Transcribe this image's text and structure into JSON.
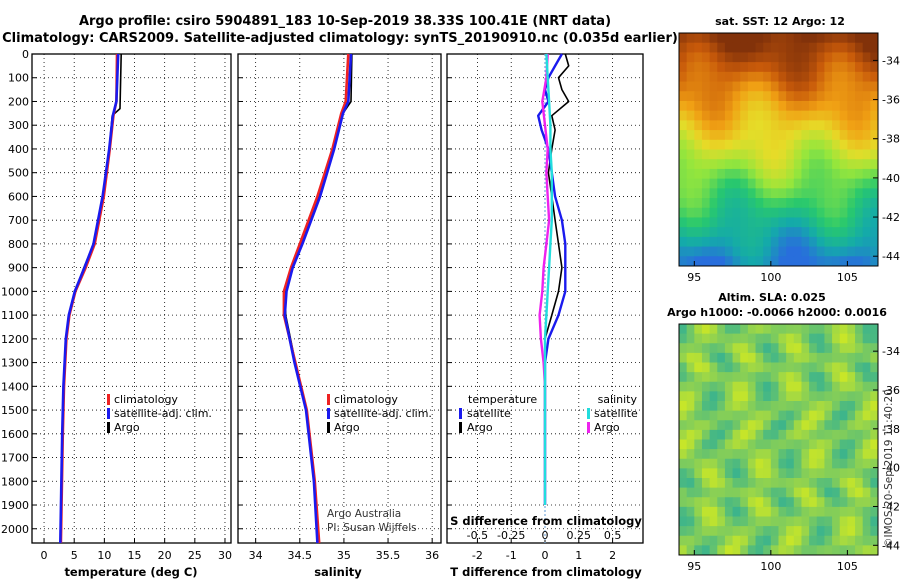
{
  "title_line1": "Argo profile: csiro 5904891_183 10-Sep-2019 38.33S 100.41E (NRT data)",
  "title_line2": "Climatology: CARS2009. Satellite-adjusted climatology: synTS_20190910.nc (0.035d earlier)",
  "credit_line1": "Argo Australia",
  "credit_line2": "PI: Susan Wijffels",
  "stamp": "©IMOS 20-Sep-2019 11:40:20",
  "colors": {
    "climatology": "#ee2222",
    "satellite": "#1a1aee",
    "argo": "#000000",
    "sal_satellite": "#22dddd",
    "sal_argo": "#ee22ee"
  },
  "chart_data": [
    {
      "type": "line",
      "id": "temperature",
      "xlabel": "temperature (deg C)",
      "ylabel": "",
      "xlim": [
        -2,
        31
      ],
      "ylim": [
        2060,
        0
      ],
      "xticks": [
        "0",
        "5",
        "10",
        "15",
        "20",
        "25",
        "30"
      ],
      "yticks": [
        "0",
        "100",
        "200",
        "300",
        "400",
        "500",
        "600",
        "700",
        "800",
        "900",
        "1000",
        "1100",
        "1200",
        "1300",
        "1400",
        "1500",
        "1600",
        "1700",
        "1800",
        "1900",
        "2000"
      ],
      "legend": [
        "climatology",
        "satellite-adj. clim.",
        "Argo"
      ],
      "series": [
        {
          "name": "climatology",
          "depth": [
            0,
            200,
            260,
            400,
            600,
            800,
            900,
            1000,
            1100,
            1200,
            1400,
            1600,
            2060
          ],
          "values": [
            12.1,
            12.0,
            11.5,
            10.9,
            9.9,
            8.4,
            6.9,
            5.2,
            4.2,
            3.7,
            3.3,
            3.1,
            2.8
          ]
        },
        {
          "name": "satellite-adj. clim.",
          "depth": [
            0,
            200,
            260,
            400,
            600,
            800,
            900,
            1000,
            1100,
            1200,
            1400,
            1600,
            2060
          ],
          "values": [
            12.3,
            12.0,
            11.4,
            10.8,
            9.7,
            8.2,
            6.7,
            5.1,
            4.1,
            3.6,
            3.2,
            3.0,
            2.7
          ]
        },
        {
          "name": "Argo",
          "depth": [
            0,
            230,
            260,
            400,
            600,
            800,
            900,
            1000,
            1100,
            1200,
            1400,
            1600,
            1900
          ],
          "values": [
            12.8,
            12.6,
            11.3,
            10.8,
            9.7,
            8.2,
            6.6,
            5.1,
            4.1,
            3.6,
            3.2,
            3.0,
            2.8
          ]
        }
      ]
    },
    {
      "type": "line",
      "id": "salinity",
      "xlabel": "salinity",
      "ylabel": "",
      "xlim": [
        33.8,
        36.1
      ],
      "ylim": [
        2060,
        0
      ],
      "xticks": [
        "34",
        "34.5",
        "35",
        "35.5",
        "36"
      ],
      "legend": [
        "climatology",
        "satellite-adj. clim.",
        "Argo"
      ],
      "series": [
        {
          "name": "climatology",
          "depth": [
            0,
            200,
            250,
            400,
            600,
            800,
            900,
            1000,
            1100,
            1300,
            1500,
            1800,
            2060
          ],
          "values": [
            35.05,
            35.02,
            34.97,
            34.87,
            34.7,
            34.5,
            34.4,
            34.32,
            34.32,
            34.45,
            34.58,
            34.67,
            34.72
          ]
        },
        {
          "name": "satellite-adj. clim.",
          "depth": [
            0,
            200,
            250,
            400,
            600,
            800,
            900,
            1000,
            1100,
            1300,
            1500,
            1800,
            2060
          ],
          "values": [
            35.08,
            35.05,
            34.99,
            34.89,
            34.73,
            34.53,
            34.42,
            34.35,
            34.33,
            34.44,
            34.57,
            34.66,
            34.7
          ]
        },
        {
          "name": "Argo",
          "depth": [
            0,
            200,
            250,
            400,
            600,
            800,
            900,
            1000,
            1100,
            1300,
            1500,
            1800,
            1900
          ],
          "values": [
            35.09,
            35.08,
            34.99,
            34.89,
            34.72,
            34.52,
            34.41,
            34.34,
            34.34,
            34.45,
            34.58,
            34.66,
            34.68
          ]
        }
      ]
    },
    {
      "type": "line",
      "id": "difference",
      "xlabel": "T difference from climatology",
      "xlabel_top": "S difference from climatology",
      "xlim": [
        -2.9,
        2.9
      ],
      "ylim": [
        2060,
        0
      ],
      "xticks": [
        "-2",
        "-1",
        "0",
        "1",
        "2"
      ],
      "xticks_top": [
        "-0.5",
        "-0.25",
        "0",
        "0.25",
        "0.5"
      ],
      "legend_temperature_title": "temperature",
      "legend_salinity_title": "salinity",
      "legend_labels": {
        "satellite": "satellite",
        "argo": "Argo"
      },
      "series": [
        {
          "name": "T satellite",
          "depth": [
            0,
            50,
            100,
            150,
            200,
            260,
            320,
            400,
            500,
            600,
            700,
            800,
            900,
            1000,
            1100,
            1200,
            1300,
            1500,
            1700,
            1900
          ],
          "values": [
            0.5,
            0.3,
            0.1,
            0.0,
            0.1,
            -0.2,
            -0.1,
            0.1,
            0.2,
            0.3,
            0.5,
            0.6,
            0.6,
            0.6,
            0.4,
            0.1,
            0.0,
            0.0,
            0.0,
            0.0
          ]
        },
        {
          "name": "T Argo",
          "depth": [
            0,
            50,
            100,
            150,
            200,
            260,
            320,
            400,
            500,
            600,
            700,
            800,
            900,
            1000,
            1100,
            1200,
            1300,
            1500,
            1700,
            1900
          ],
          "values": [
            0.6,
            0.7,
            0.4,
            0.5,
            0.7,
            0.2,
            0.3,
            0.2,
            0.1,
            0.2,
            0.3,
            0.4,
            0.5,
            0.4,
            0.2,
            0.0,
            0.0,
            0.0,
            0.0,
            0.0
          ]
        },
        {
          "name": "S satellite",
          "depth": [
            0,
            100,
            200,
            300,
            400,
            500,
            600,
            700,
            800,
            900,
            1000,
            1100,
            1200,
            1300,
            1400,
            1600,
            1800,
            1900
          ],
          "values": [
            0.01,
            0.02,
            0.03,
            0.04,
            0.04,
            0.05,
            0.05,
            0.05,
            0.04,
            0.03,
            0.02,
            0.01,
            0.0,
            0.0,
            0.0,
            0.0,
            0.0,
            0.0
          ]
        },
        {
          "name": "S Argo",
          "depth": [
            0,
            100,
            200,
            300,
            400,
            500,
            600,
            700,
            800,
            900,
            1000,
            1100,
            1200,
            1300,
            1400,
            1600,
            1800,
            1900
          ],
          "values": [
            0.02,
            0.01,
            -0.02,
            0.0,
            0.02,
            0.01,
            0.02,
            0.03,
            0.01,
            -0.01,
            -0.02,
            -0.04,
            -0.03,
            -0.01,
            0.0,
            0.0,
            0.0,
            0.0
          ]
        }
      ]
    },
    {
      "type": "heatmap",
      "id": "sst_map",
      "title": "sat. SST: 12 Argo: 12",
      "xticks": [
        "95",
        "100",
        "105"
      ],
      "yticks": [
        "-34",
        "-36",
        "-38",
        "-40",
        "-42",
        "-44"
      ],
      "xlim": [
        94,
        107
      ],
      "ylim": [
        -44.5,
        -32.6
      ]
    },
    {
      "type": "heatmap",
      "id": "sla_map",
      "title_line1": "Altim. SLA: 0.025",
      "title_line2": "Argo h1000: -0.0066 h2000: 0.0016",
      "xticks": [
        "95",
        "100",
        "105"
      ],
      "yticks": [
        "-34",
        "-36",
        "-38",
        "-40",
        "-42",
        "-44"
      ],
      "xlim": [
        94,
        107
      ],
      "ylim": [
        -44.5,
        -32.6
      ]
    }
  ]
}
